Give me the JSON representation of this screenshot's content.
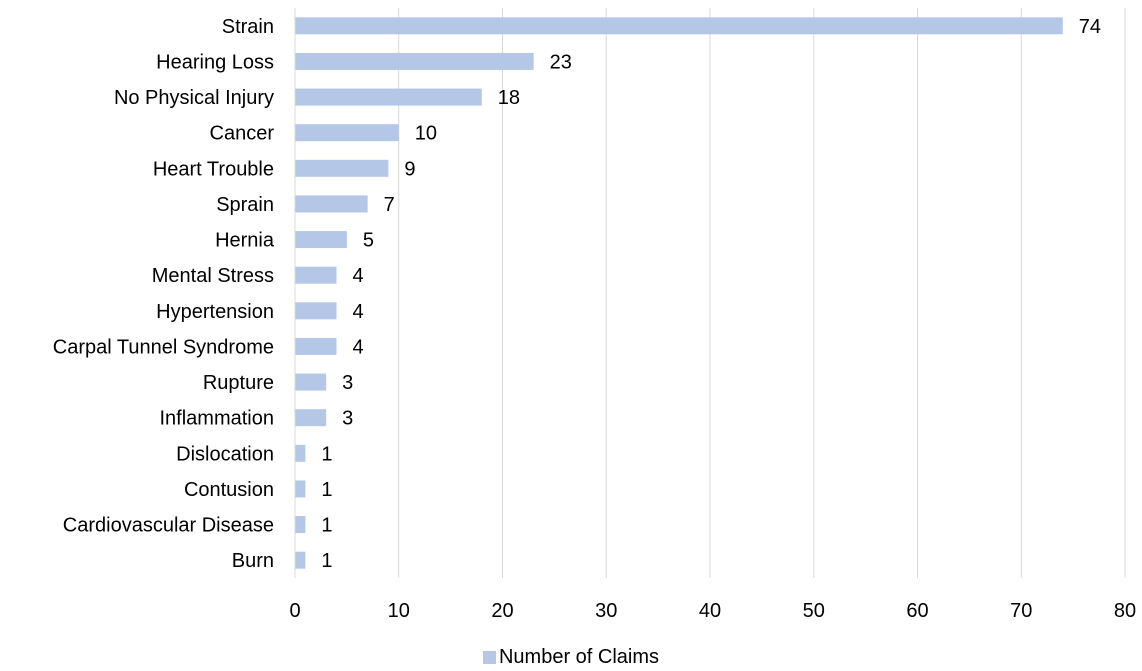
{
  "chart_data": {
    "type": "bar",
    "orientation": "horizontal",
    "categories": [
      "Strain",
      "Hearing Loss",
      "No Physical Injury",
      "Cancer",
      "Heart Trouble",
      "Sprain",
      "Hernia",
      "Mental Stress",
      "Hypertension",
      "Carpal Tunnel Syndrome",
      "Rupture",
      "Inflammation",
      "Dislocation",
      "Contusion",
      "Cardiovascular Disease",
      "Burn"
    ],
    "series": [
      {
        "name": "Number of Claims",
        "values": [
          74,
          23,
          18,
          10,
          9,
          7,
          5,
          4,
          4,
          4,
          3,
          3,
          1,
          1,
          1,
          1
        ],
        "color": "#b4c7e7"
      }
    ],
    "data_labels": true,
    "xlim": [
      0,
      80
    ],
    "x_ticks": [
      0,
      10,
      20,
      30,
      40,
      50,
      60,
      70,
      80
    ],
    "grid": "vertical",
    "legend_position": "bottom",
    "title": "",
    "xlabel": "",
    "ylabel": ""
  }
}
